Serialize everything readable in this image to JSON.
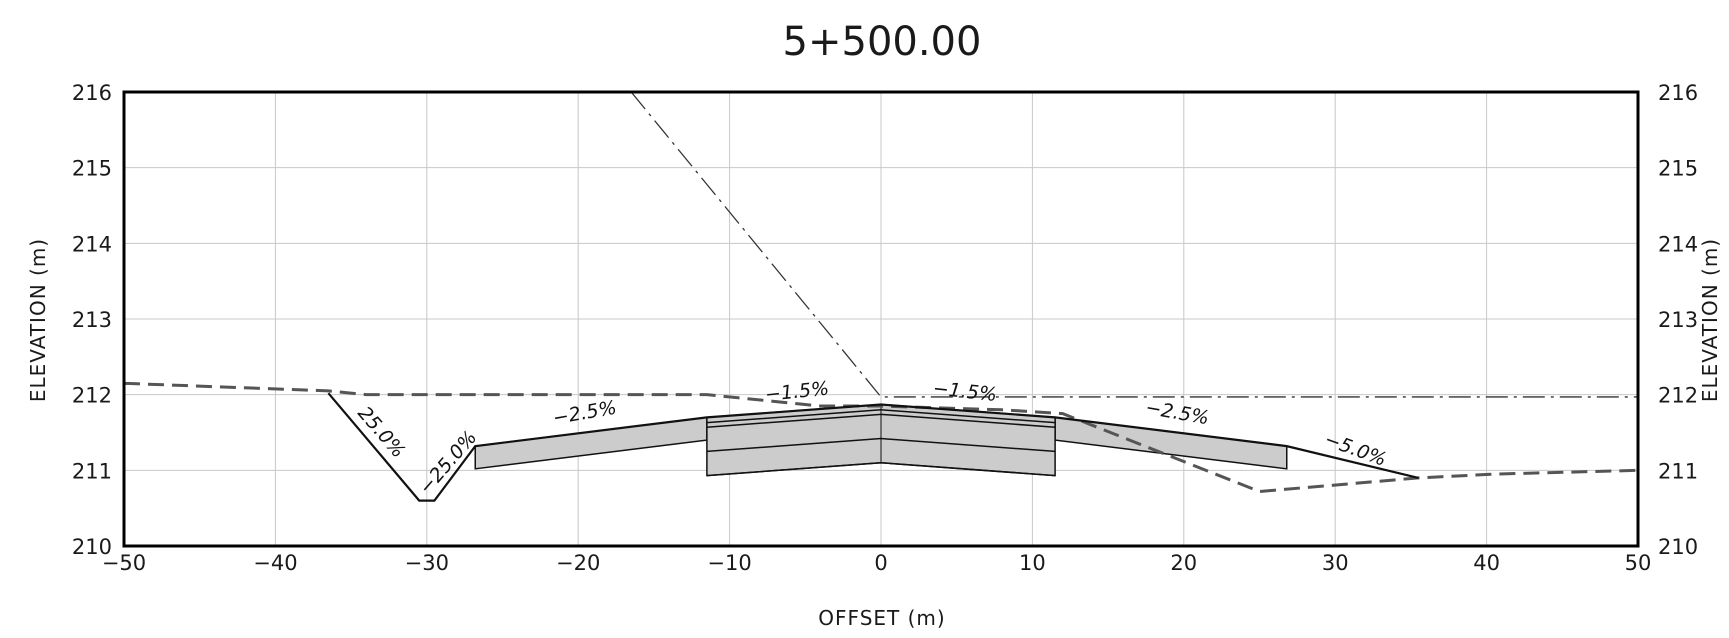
{
  "chart_data": {
    "type": "line",
    "title": "5+500.00",
    "xlabel": "OFFSET (m)",
    "ylabel": "ELEVATION (m)",
    "xlim": [
      -50,
      50
    ],
    "ylim": [
      210,
      216
    ],
    "x_ticks": [
      -50,
      -40,
      -30,
      -20,
      -10,
      0,
      10,
      20,
      30,
      40,
      50
    ],
    "y_ticks": [
      210,
      211,
      212,
      213,
      214,
      215,
      216
    ],
    "x_tick_labels": [
      "−50",
      "−40",
      "−30",
      "−20",
      "−10",
      "0",
      "10",
      "20",
      "30",
      "40",
      "50"
    ],
    "y_tick_labels": [
      "210",
      "211",
      "212",
      "213",
      "214",
      "215",
      "216"
    ],
    "grid": true,
    "series": [
      {
        "style": "dashed",
        "color": "#555555",
        "x": [
          -50,
          -36.5,
          -34,
          -20,
          -11.5,
          -4,
          0,
          8,
          12,
          25,
          35.5,
          40.5,
          50
        ],
        "y": [
          212.15,
          212.05,
          212.0,
          212.0,
          212.0,
          211.85,
          211.85,
          211.8,
          211.75,
          210.72,
          210.9,
          210.95,
          211.0
        ]
      },
      {
        "style": "dash-dot",
        "color": "#333333",
        "x": [
          -16.5,
          0,
          50
        ],
        "y": [
          216.0,
          211.97,
          211.97
        ]
      },
      {
        "style": "solid",
        "color": "#111111",
        "x": [
          -36.5,
          -30.5,
          -29.5,
          -26.8,
          -11.5,
          0,
          11.5,
          26.8,
          35.5
        ],
        "y": [
          212.02,
          210.6,
          210.6,
          211.32,
          211.7,
          211.87,
          211.7,
          211.32,
          210.9
        ]
      }
    ],
    "annotations": [
      {
        "text": "25.0%",
        "x": -33.3,
        "y": 211.45,
        "angle": 49
      },
      {
        "text": "−25.0%",
        "x": -28.3,
        "y": 211.05,
        "angle": -49
      },
      {
        "text": "−2.5%",
        "x": -19.5,
        "y": 211.68,
        "angle": -10
      },
      {
        "text": "−1.5%",
        "x": -5.5,
        "y": 211.96,
        "angle": -6
      },
      {
        "text": "−1.5%",
        "x": 5.5,
        "y": 211.96,
        "angle": 6
      },
      {
        "text": "−2.5%",
        "x": 19.5,
        "y": 211.68,
        "angle": 10
      },
      {
        "text": "−5.0%",
        "x": 31.2,
        "y": 211.2,
        "angle": 20
      }
    ],
    "pavement": {
      "color": "#cccccc",
      "left_shoulder": {
        "x0": -26.8,
        "x1": -11.5,
        "top": [
          211.32,
          211.7
        ],
        "bottom": [
          211.02,
          211.4
        ]
      },
      "right_shoulder": {
        "x0": 11.5,
        "x1": 26.8,
        "top": [
          211.7,
          211.32
        ],
        "bottom": [
          211.4,
          211.02
        ]
      },
      "carriageway_layers": [
        {
          "xs": [
            -11.5,
            0,
            11.5
          ],
          "y": [
            211.7,
            211.87,
            211.7
          ]
        },
        {
          "xs": [
            -11.5,
            0,
            11.5
          ],
          "y": [
            211.63,
            211.8,
            211.63
          ]
        },
        {
          "xs": [
            -11.5,
            0,
            11.5
          ],
          "y": [
            211.57,
            211.74,
            211.57
          ]
        },
        {
          "xs": [
            -11.5,
            0,
            11.5
          ],
          "y": [
            211.25,
            211.42,
            211.25
          ]
        },
        {
          "xs": [
            -11.5,
            0,
            11.5
          ],
          "y": [
            210.93,
            211.1,
            210.93
          ]
        }
      ]
    }
  }
}
